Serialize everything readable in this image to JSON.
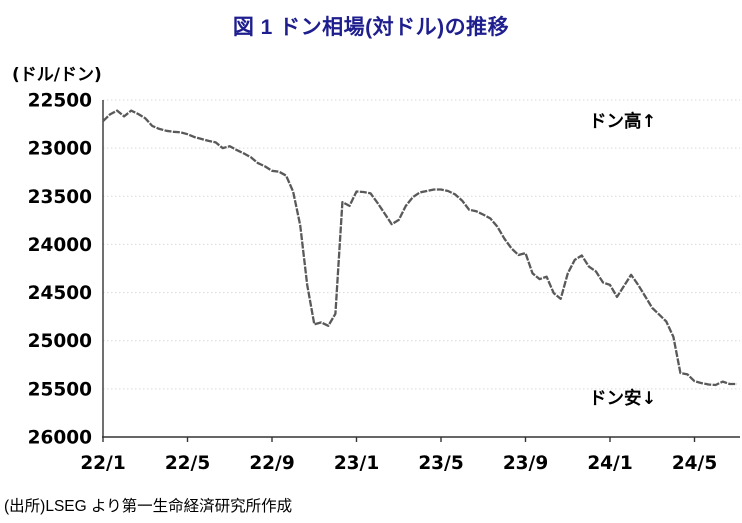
{
  "page": {
    "title": "図 1 ドン相場(対ドル)の推移",
    "source_note": "(出所)LSEG より第一生命経済研究所作成"
  },
  "colors": {
    "title": "#1e1e8f",
    "line": "#595959",
    "grid": "#d9d9d9",
    "axis": "#333333",
    "text": "#000000"
  },
  "chart_data": {
    "type": "line",
    "title": "図 1 ドン相場(対ドル)の推移",
    "unit_label": "(ドル/ドン)",
    "grid": "horizontal-dotted",
    "legend": "none",
    "y_axis": {
      "min": 22500,
      "max": 26000,
      "inverted_display": true,
      "ticks": [
        22500,
        23000,
        23500,
        24000,
        24500,
        25000,
        25500,
        26000
      ]
    },
    "x_axis": {
      "tick_labels": [
        "22/1",
        "22/5",
        "22/9",
        "23/1",
        "23/5",
        "23/9",
        "24/1",
        "24/5"
      ],
      "months_per_tick": 4
    },
    "annotations": {
      "high": "ドン高↑",
      "low": "ドン安↓"
    },
    "series": [
      {
        "name": "ドン相場(対ドル)",
        "color": "#595959",
        "start_label": "22/1",
        "points_per_month": 3,
        "values": [
          22720,
          22650,
          22610,
          22670,
          22610,
          22645,
          22690,
          22770,
          22800,
          22820,
          22830,
          22835,
          22855,
          22885,
          22905,
          22925,
          22940,
          23000,
          22980,
          23020,
          23055,
          23095,
          23155,
          23190,
          23235,
          23245,
          23285,
          23450,
          23800,
          24420,
          24830,
          24810,
          24845,
          24720,
          23560,
          23600,
          23450,
          23455,
          23470,
          23570,
          23680,
          23790,
          23745,
          23600,
          23510,
          23460,
          23445,
          23430,
          23430,
          23445,
          23480,
          23545,
          23640,
          23655,
          23690,
          23730,
          23815,
          23940,
          24040,
          24110,
          24090,
          24300,
          24360,
          24335,
          24505,
          24565,
          24300,
          24160,
          24115,
          24230,
          24280,
          24395,
          24420,
          24545,
          24430,
          24315,
          24420,
          24540,
          24660,
          24730,
          24800,
          24960,
          25335,
          25350,
          25420,
          25440,
          25455,
          25460,
          25425,
          25450,
          25450
        ]
      }
    ]
  }
}
